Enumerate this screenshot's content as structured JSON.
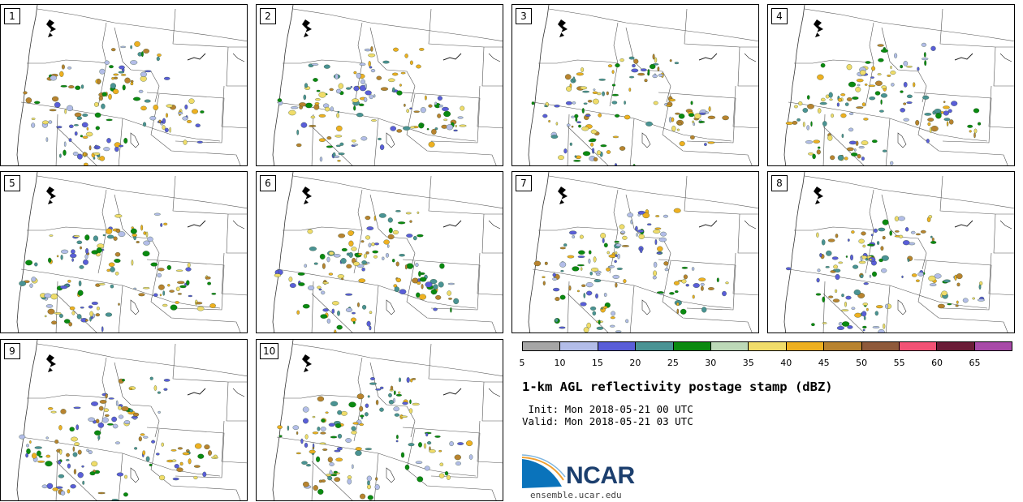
{
  "panels": [
    {
      "number": "1"
    },
    {
      "number": "2"
    },
    {
      "number": "3"
    },
    {
      "number": "4"
    },
    {
      "number": "5"
    },
    {
      "number": "6"
    },
    {
      "number": "7"
    },
    {
      "number": "8"
    },
    {
      "number": "9"
    },
    {
      "number": "10"
    }
  ],
  "colorbar": {
    "colors": [
      "#a6a6a6",
      "#b3bde8",
      "#5a5ed8",
      "#4a9394",
      "#0a8a10",
      "#bdd9b8",
      "#f0dc6a",
      "#eeb021",
      "#b8832f",
      "#8f5a3b",
      "#f25275",
      "#6a1c37",
      "#a84aa8"
    ],
    "ticks": [
      "5",
      "10",
      "15",
      "20",
      "25",
      "30",
      "35",
      "40",
      "45",
      "50",
      "55",
      "60",
      "65"
    ]
  },
  "title": "1-km AGL reflectivity postage stamp (dBZ)",
  "init": " Init: Mon 2018-05-21 00 UTC",
  "valid": "Valid: Mon 2018-05-21 03 UTC",
  "logo": {
    "text": "NCAR",
    "site": "ensemble.ucar.edu"
  }
}
